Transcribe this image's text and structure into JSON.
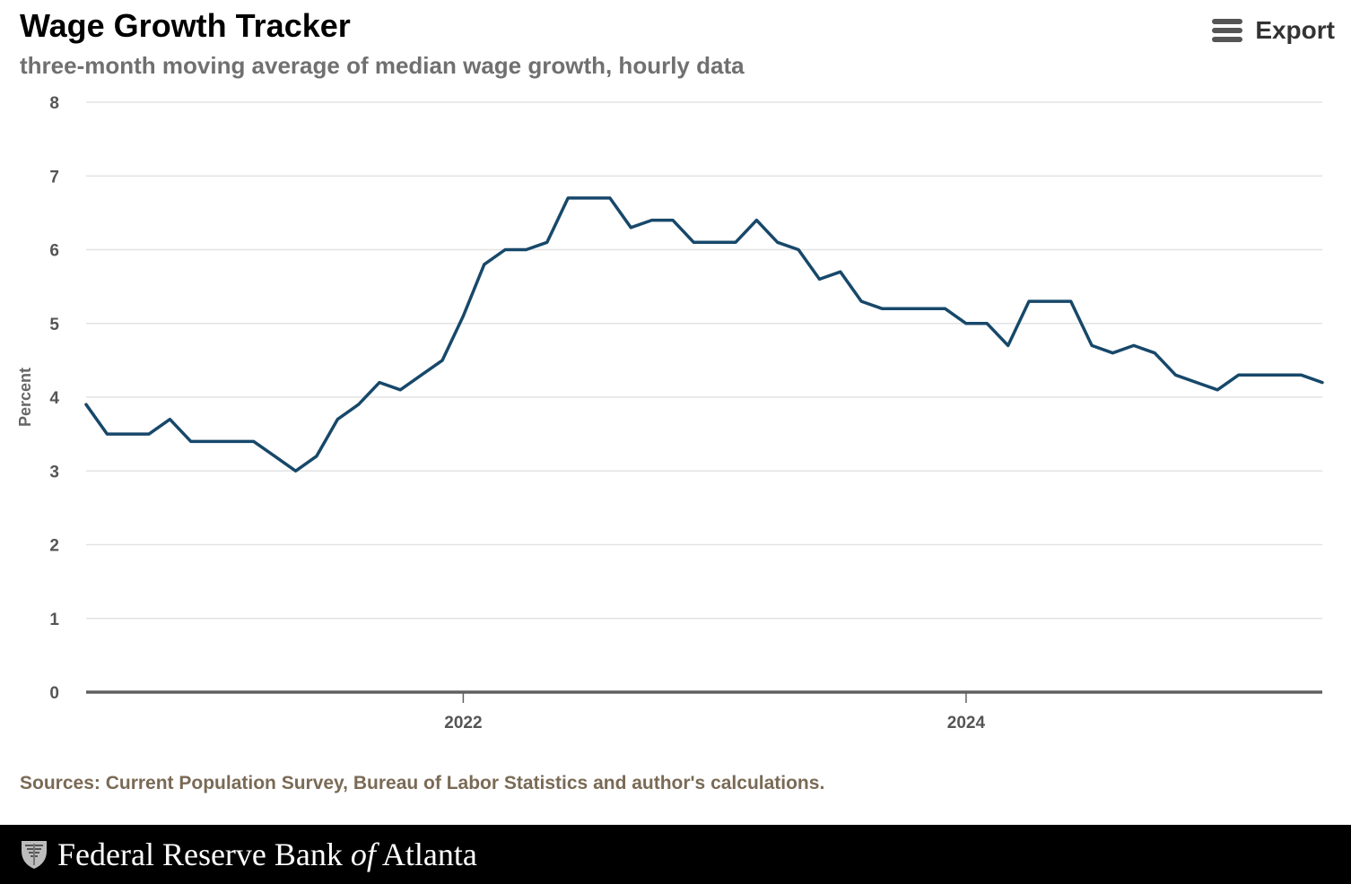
{
  "header": {
    "title": "Wage Growth Tracker",
    "subtitle": "three-month moving average of median wage growth, hourly data",
    "export_label": "Export",
    "export_icon": "menu-icon"
  },
  "footnote": {
    "source": "Sources: Current Population Survey, Bureau of Labor Statistics and author's calculations."
  },
  "footer": {
    "org_name_part1": "Federal Reserve Bank ",
    "org_name_of": "of",
    "org_name_part2": " Atlanta",
    "logo_icon": "eagle-seal-icon"
  },
  "colors": {
    "line": "#17486a",
    "grid": "#e3e3e3",
    "axis": "#606060",
    "footer_bg": "#000000"
  },
  "chart_data": {
    "type": "line",
    "title": "Wage Growth Tracker",
    "subtitle": "three-month moving average of median wage growth, hourly data",
    "xlabel": "",
    "ylabel": "Percent",
    "ylim": [
      0,
      8
    ],
    "yticks": [
      0,
      1,
      2,
      3,
      4,
      5,
      6,
      7,
      8
    ],
    "xlim": [
      "2020-07",
      "2025-06"
    ],
    "xticks": [
      {
        "date": "2022-01",
        "label": "2022"
      },
      {
        "date": "2024-01",
        "label": "2024"
      }
    ],
    "grid": true,
    "legend": "none",
    "series": [
      {
        "x": [
          "2020-07",
          "2020-08",
          "2020-09",
          "2020-10",
          "2020-11",
          "2020-12",
          "2021-01",
          "2021-02",
          "2021-03",
          "2021-04",
          "2021-05",
          "2021-06",
          "2021-07",
          "2021-08",
          "2021-09",
          "2021-10",
          "2021-11",
          "2021-12",
          "2022-01",
          "2022-02",
          "2022-03",
          "2022-04",
          "2022-05",
          "2022-06",
          "2022-07",
          "2022-08",
          "2022-09",
          "2022-10",
          "2022-11",
          "2022-12",
          "2023-01",
          "2023-02",
          "2023-03",
          "2023-04",
          "2023-05",
          "2023-06",
          "2023-07",
          "2023-08",
          "2023-09",
          "2023-10",
          "2023-11",
          "2023-12",
          "2024-01",
          "2024-02",
          "2024-03",
          "2024-04",
          "2024-05",
          "2024-06",
          "2024-07",
          "2024-08",
          "2024-09",
          "2024-10",
          "2024-11",
          "2024-12",
          "2025-01",
          "2025-02",
          "2025-03",
          "2025-04",
          "2025-05",
          "2025-06"
        ],
        "values": [
          3.9,
          3.5,
          3.5,
          3.5,
          3.7,
          3.4,
          3.4,
          3.4,
          3.4,
          3.2,
          3.0,
          3.2,
          3.7,
          3.9,
          4.2,
          4.1,
          4.3,
          4.5,
          5.1,
          5.8,
          6.0,
          6.0,
          6.1,
          6.7,
          6.7,
          6.7,
          6.3,
          6.4,
          6.4,
          6.1,
          6.1,
          6.1,
          6.4,
          6.1,
          6.0,
          5.6,
          5.7,
          5.3,
          5.2,
          5.2,
          5.2,
          5.2,
          5.0,
          5.0,
          4.7,
          5.3,
          5.3,
          5.3,
          4.7,
          4.6,
          4.7,
          4.6,
          4.3,
          4.2,
          4.1,
          4.3,
          4.3,
          4.3,
          4.3,
          4.2
        ]
      }
    ]
  }
}
